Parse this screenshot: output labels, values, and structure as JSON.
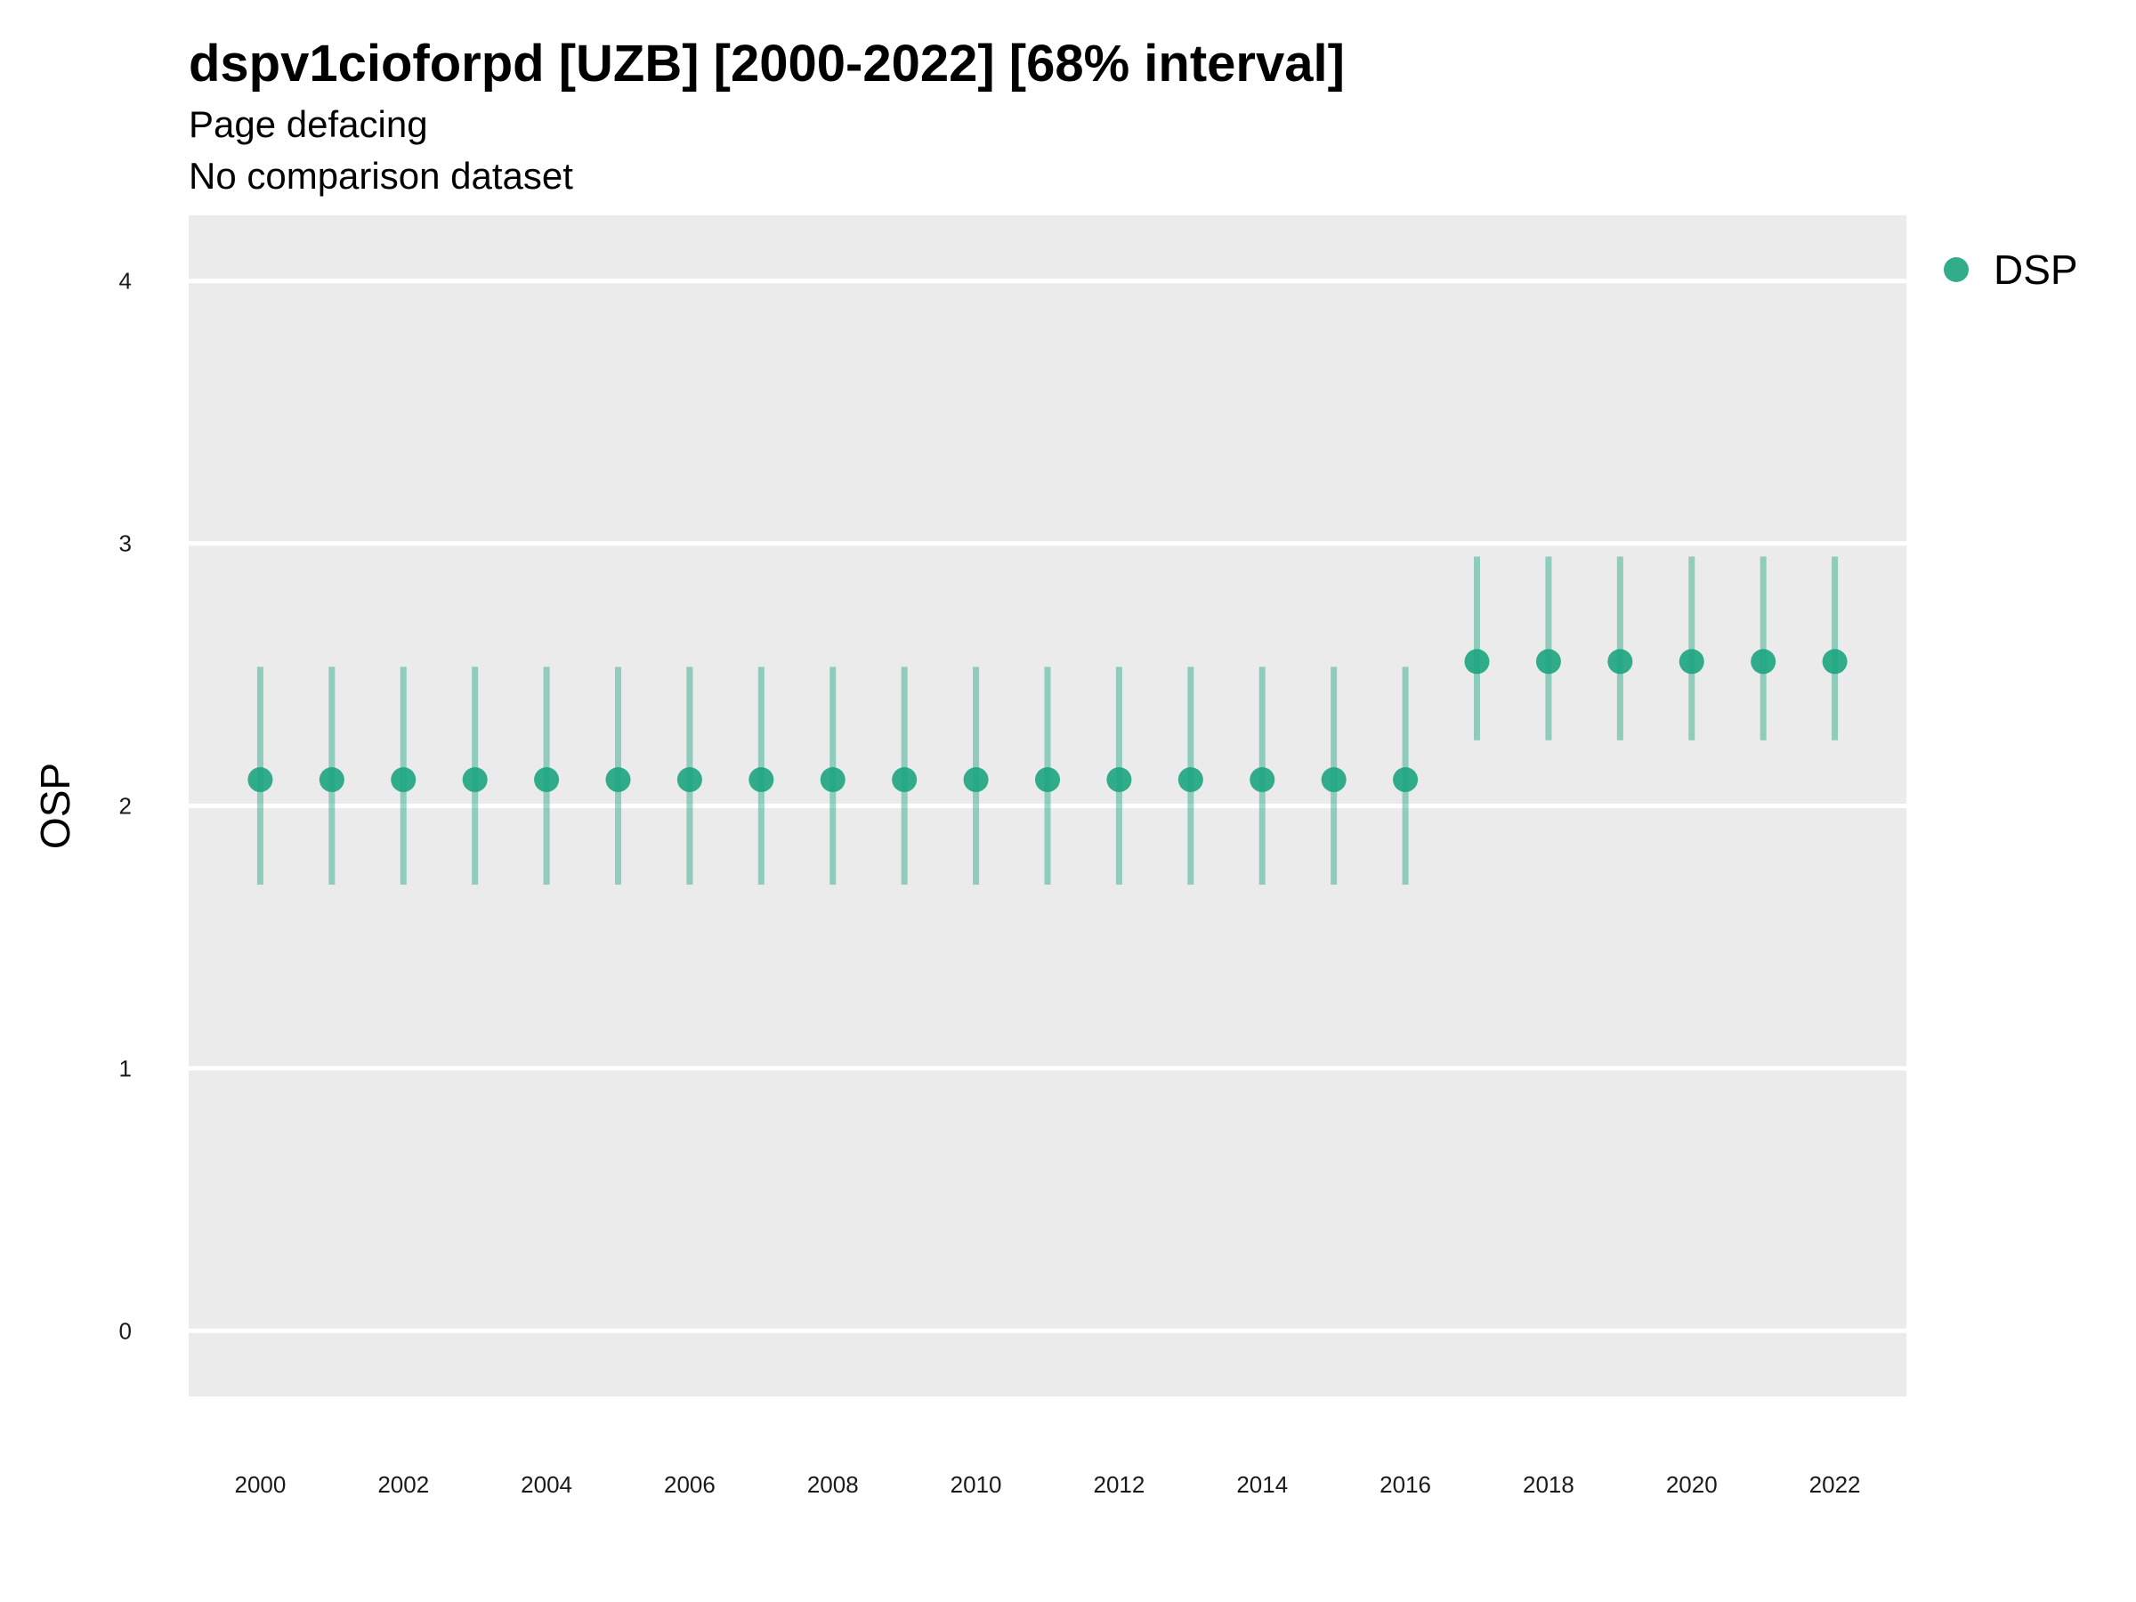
{
  "title": "dspv1cioforpd [UZB] [2000-2022] [68% interval]",
  "subtitle": "Page defacing",
  "caption_line": "No comparison dataset",
  "colors": {
    "series": "#1fa681",
    "panel": "#ebebeb",
    "grid": "#ffffff"
  },
  "chart_data": {
    "type": "scatter",
    "title": "dspv1cioforpd [UZB] [2000-2022] [68% interval]",
    "xlabel": "",
    "ylabel": "OSP",
    "xlim": [
      1999,
      2023
    ],
    "ylim": [
      -0.25,
      4.25
    ],
    "x_ticks": [
      2000,
      2002,
      2004,
      2006,
      2008,
      2010,
      2012,
      2014,
      2016,
      2018,
      2020,
      2022
    ],
    "y_ticks": [
      0,
      1,
      2,
      3,
      4
    ],
    "grid": true,
    "legend_position": "right",
    "series": [
      {
        "name": "DSP",
        "x": [
          2000,
          2001,
          2002,
          2003,
          2004,
          2005,
          2006,
          2007,
          2008,
          2009,
          2010,
          2011,
          2012,
          2013,
          2014,
          2015,
          2016,
          2017,
          2018,
          2019,
          2020,
          2021,
          2022
        ],
        "y": [
          2.1,
          2.1,
          2.1,
          2.1,
          2.1,
          2.1,
          2.1,
          2.1,
          2.1,
          2.1,
          2.1,
          2.1,
          2.1,
          2.1,
          2.1,
          2.1,
          2.1,
          2.55,
          2.55,
          2.55,
          2.55,
          2.55,
          2.55
        ],
        "lower": [
          1.7,
          1.7,
          1.7,
          1.7,
          1.7,
          1.7,
          1.7,
          1.7,
          1.7,
          1.7,
          1.7,
          1.7,
          1.7,
          1.7,
          1.7,
          1.7,
          1.7,
          2.25,
          2.25,
          2.25,
          2.25,
          2.25,
          2.25
        ],
        "upper": [
          2.53,
          2.53,
          2.53,
          2.53,
          2.53,
          2.53,
          2.53,
          2.53,
          2.53,
          2.53,
          2.53,
          2.53,
          2.53,
          2.53,
          2.53,
          2.53,
          2.53,
          2.95,
          2.95,
          2.95,
          2.95,
          2.95,
          2.95
        ]
      }
    ]
  }
}
